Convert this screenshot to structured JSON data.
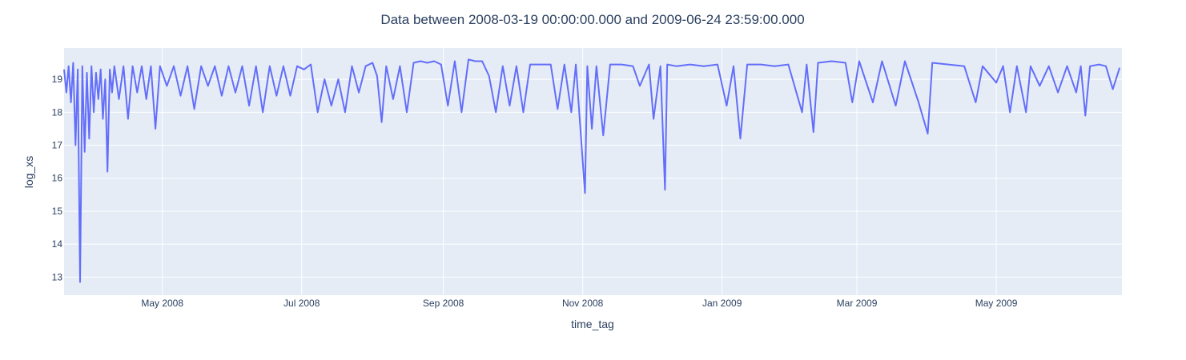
{
  "chart_data": {
    "type": "line",
    "title": "Data between 2008-03-19 00:00:00.000 and 2009-06-24 23:59:00.000",
    "xlabel": "time_tag",
    "ylabel": "log_xs",
    "xlim": [
      "2008-03-19",
      "2009-06-24"
    ],
    "ylim": [
      12.45,
      19.95
    ],
    "grid": true,
    "legend": "none",
    "colors": {
      "line": "#636efa",
      "plot_bg": "#e5ecf6",
      "grid": "#ffffff",
      "text": "#2a3f5f"
    },
    "x_ticks": [
      {
        "date": "2008-05-01",
        "label": "May 2008"
      },
      {
        "date": "2008-07-01",
        "label": "Jul 2008"
      },
      {
        "date": "2008-09-01",
        "label": "Sep 2008"
      },
      {
        "date": "2008-11-01",
        "label": "Nov 2008"
      },
      {
        "date": "2009-01-01",
        "label": "Jan 2009"
      },
      {
        "date": "2009-03-01",
        "label": "Mar 2009"
      },
      {
        "date": "2009-05-01",
        "label": "May 2009"
      }
    ],
    "y_ticks": [
      13,
      14,
      15,
      16,
      17,
      18,
      19
    ],
    "series": [
      {
        "values": [
          [
            "2008-03-19",
            19.3
          ],
          [
            "2008-03-20",
            18.6
          ],
          [
            "2008-03-21",
            19.4
          ],
          [
            "2008-03-22",
            18.3
          ],
          [
            "2008-03-23",
            19.5
          ],
          [
            "2008-03-24",
            17.0
          ],
          [
            "2008-03-25",
            19.3
          ],
          [
            "2008-03-26",
            12.85
          ],
          [
            "2008-03-27",
            19.4
          ],
          [
            "2008-03-28",
            16.8
          ],
          [
            "2008-03-29",
            19.2
          ],
          [
            "2008-03-30",
            17.2
          ],
          [
            "2008-03-31",
            19.4
          ],
          [
            "2008-04-01",
            18.0
          ],
          [
            "2008-04-02",
            19.2
          ],
          [
            "2008-04-03",
            18.4
          ],
          [
            "2008-04-04",
            19.3
          ],
          [
            "2008-04-05",
            17.8
          ],
          [
            "2008-04-06",
            19.0
          ],
          [
            "2008-04-07",
            16.2
          ],
          [
            "2008-04-08",
            19.3
          ],
          [
            "2008-04-09",
            18.6
          ],
          [
            "2008-04-10",
            19.4
          ],
          [
            "2008-04-12",
            18.4
          ],
          [
            "2008-04-14",
            19.4
          ],
          [
            "2008-04-16",
            17.8
          ],
          [
            "2008-04-18",
            19.4
          ],
          [
            "2008-04-20",
            18.6
          ],
          [
            "2008-04-22",
            19.4
          ],
          [
            "2008-04-24",
            18.4
          ],
          [
            "2008-04-26",
            19.4
          ],
          [
            "2008-04-28",
            17.5
          ],
          [
            "2008-04-30",
            19.4
          ],
          [
            "2008-05-03",
            18.8
          ],
          [
            "2008-05-06",
            19.4
          ],
          [
            "2008-05-09",
            18.5
          ],
          [
            "2008-05-12",
            19.4
          ],
          [
            "2008-05-15",
            18.1
          ],
          [
            "2008-05-18",
            19.4
          ],
          [
            "2008-05-21",
            18.8
          ],
          [
            "2008-05-24",
            19.4
          ],
          [
            "2008-05-27",
            18.5
          ],
          [
            "2008-05-30",
            19.4
          ],
          [
            "2008-06-02",
            18.6
          ],
          [
            "2008-06-05",
            19.4
          ],
          [
            "2008-06-08",
            18.2
          ],
          [
            "2008-06-11",
            19.4
          ],
          [
            "2008-06-14",
            18.0
          ],
          [
            "2008-06-17",
            19.4
          ],
          [
            "2008-06-20",
            18.5
          ],
          [
            "2008-06-23",
            19.4
          ],
          [
            "2008-06-26",
            18.5
          ],
          [
            "2008-06-29",
            19.4
          ],
          [
            "2008-07-02",
            19.3
          ],
          [
            "2008-07-05",
            19.45
          ],
          [
            "2008-07-08",
            18.0
          ],
          [
            "2008-07-11",
            19.0
          ],
          [
            "2008-07-14",
            18.2
          ],
          [
            "2008-07-17",
            19.0
          ],
          [
            "2008-07-20",
            18.0
          ],
          [
            "2008-07-23",
            19.4
          ],
          [
            "2008-07-26",
            18.6
          ],
          [
            "2008-07-29",
            19.4
          ],
          [
            "2008-08-01",
            19.5
          ],
          [
            "2008-08-03",
            19.1
          ],
          [
            "2008-08-05",
            17.7
          ],
          [
            "2008-08-07",
            19.4
          ],
          [
            "2008-08-10",
            18.4
          ],
          [
            "2008-08-13",
            19.4
          ],
          [
            "2008-08-16",
            18.0
          ],
          [
            "2008-08-19",
            19.5
          ],
          [
            "2008-08-22",
            19.55
          ],
          [
            "2008-08-25",
            19.5
          ],
          [
            "2008-08-28",
            19.55
          ],
          [
            "2008-08-31",
            19.45
          ],
          [
            "2008-09-03",
            18.2
          ],
          [
            "2008-09-06",
            19.55
          ],
          [
            "2008-09-09",
            18.0
          ],
          [
            "2008-09-12",
            19.6
          ],
          [
            "2008-09-15",
            19.55
          ],
          [
            "2008-09-18",
            19.55
          ],
          [
            "2008-09-21",
            19.1
          ],
          [
            "2008-09-24",
            18.0
          ],
          [
            "2008-09-27",
            19.4
          ],
          [
            "2008-09-30",
            18.2
          ],
          [
            "2008-10-03",
            19.4
          ],
          [
            "2008-10-06",
            18.0
          ],
          [
            "2008-10-09",
            19.45
          ],
          [
            "2008-10-12",
            19.45
          ],
          [
            "2008-10-15",
            19.45
          ],
          [
            "2008-10-18",
            19.45
          ],
          [
            "2008-10-21",
            18.1
          ],
          [
            "2008-10-24",
            19.45
          ],
          [
            "2008-10-27",
            18.0
          ],
          [
            "2008-10-29",
            19.45
          ],
          [
            "2008-11-01",
            16.5
          ],
          [
            "2008-11-02",
            15.55
          ],
          [
            "2008-11-03",
            19.4
          ],
          [
            "2008-11-05",
            17.5
          ],
          [
            "2008-11-07",
            19.4
          ],
          [
            "2008-11-10",
            17.3
          ],
          [
            "2008-11-13",
            19.45
          ],
          [
            "2008-11-18",
            19.45
          ],
          [
            "2008-11-23",
            19.4
          ],
          [
            "2008-11-26",
            18.8
          ],
          [
            "2008-11-30",
            19.45
          ],
          [
            "2008-12-02",
            17.8
          ],
          [
            "2008-12-05",
            19.4
          ],
          [
            "2008-12-07",
            15.65
          ],
          [
            "2008-12-08",
            19.45
          ],
          [
            "2008-12-12",
            19.4
          ],
          [
            "2008-12-18",
            19.45
          ],
          [
            "2008-12-24",
            19.4
          ],
          [
            "2008-12-30",
            19.45
          ],
          [
            "2009-01-03",
            18.2
          ],
          [
            "2009-01-06",
            19.4
          ],
          [
            "2009-01-09",
            17.2
          ],
          [
            "2009-01-12",
            19.45
          ],
          [
            "2009-01-18",
            19.45
          ],
          [
            "2009-01-24",
            19.4
          ],
          [
            "2009-01-30",
            19.45
          ],
          [
            "2009-02-05",
            18.0
          ],
          [
            "2009-02-07",
            19.45
          ],
          [
            "2009-02-10",
            17.4
          ],
          [
            "2009-02-12",
            19.5
          ],
          [
            "2009-02-18",
            19.55
          ],
          [
            "2009-02-24",
            19.5
          ],
          [
            "2009-02-27",
            18.3
          ],
          [
            "2009-03-02",
            19.55
          ],
          [
            "2009-03-08",
            18.3
          ],
          [
            "2009-03-12",
            19.55
          ],
          [
            "2009-03-18",
            18.2
          ],
          [
            "2009-03-22",
            19.55
          ],
          [
            "2009-03-28",
            18.3
          ],
          [
            "2009-04-01",
            17.35
          ],
          [
            "2009-04-03",
            19.5
          ],
          [
            "2009-04-10",
            19.45
          ],
          [
            "2009-04-17",
            19.4
          ],
          [
            "2009-04-22",
            18.3
          ],
          [
            "2009-04-25",
            19.4
          ],
          [
            "2009-05-01",
            18.9
          ],
          [
            "2009-05-04",
            19.4
          ],
          [
            "2009-05-07",
            18.0
          ],
          [
            "2009-05-10",
            19.4
          ],
          [
            "2009-05-14",
            18.0
          ],
          [
            "2009-05-16",
            19.4
          ],
          [
            "2009-05-20",
            18.8
          ],
          [
            "2009-05-24",
            19.4
          ],
          [
            "2009-05-28",
            18.6
          ],
          [
            "2009-06-01",
            19.4
          ],
          [
            "2009-06-05",
            18.6
          ],
          [
            "2009-06-07",
            19.4
          ],
          [
            "2009-06-09",
            17.9
          ],
          [
            "2009-06-11",
            19.4
          ],
          [
            "2009-06-15",
            19.45
          ],
          [
            "2009-06-18",
            19.4
          ],
          [
            "2009-06-21",
            18.7
          ],
          [
            "2009-06-24",
            19.35
          ]
        ]
      }
    ]
  }
}
